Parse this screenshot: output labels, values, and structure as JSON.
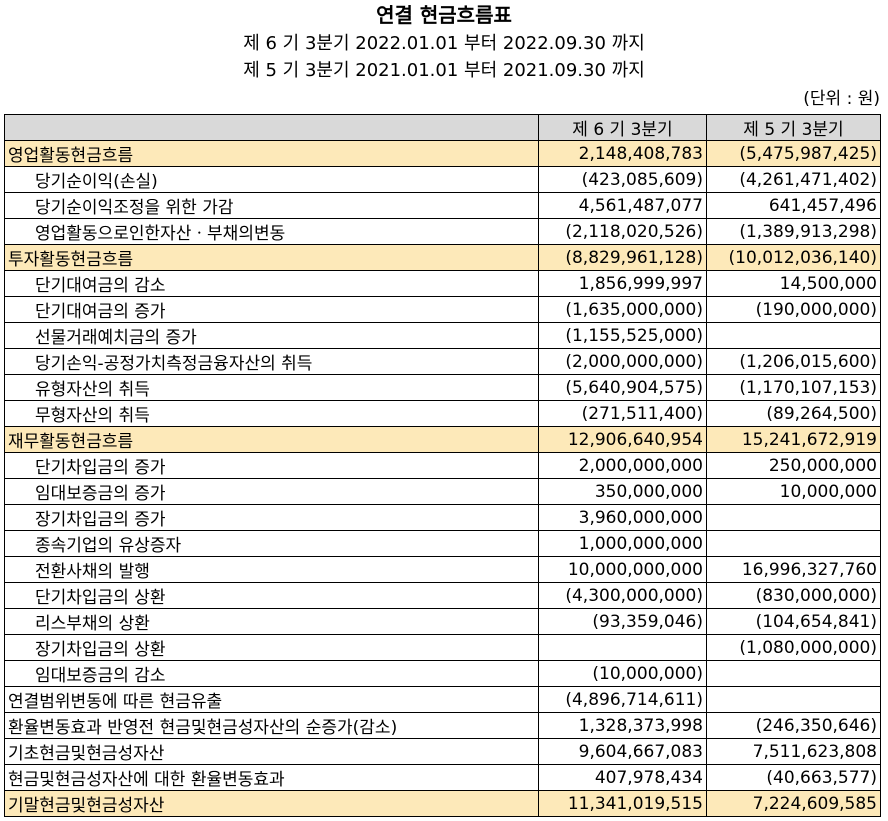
{
  "title": "연결 현금흐름표",
  "period_current": "제 6 기 3분기 2022.01.01 부터 2022.09.30 까지",
  "period_prior": "제 5 기 3분기 2021.01.01 부터 2021.09.30 까지",
  "unit": "(단위 : 원)",
  "colors": {
    "header_bg": "#d9d9d9",
    "section_bg": "#fde9b9"
  },
  "table": {
    "header": [
      "",
      "제 6 기 3분기",
      "제 5 기 3분기"
    ],
    "rows": [
      {
        "label": "영업활동현금흐름",
        "current": "2,148,408,783",
        "prior": "(5,475,987,425)",
        "section": true
      },
      {
        "label": "당기순이익(손실)",
        "current": "(423,085,609)",
        "prior": "(4,261,471,402)",
        "indent": true
      },
      {
        "label": "당기순이익조정을 위한 가감",
        "current": "4,561,487,077",
        "prior": "641,457,496",
        "indent": true
      },
      {
        "label": "영업활동으로인한자산ㆍ부채의변동",
        "current": "(2,118,020,526)",
        "prior": "(1,389,913,298)",
        "indent": true
      },
      {
        "label": "투자활동현금흐름",
        "current": "(8,829,961,128)",
        "prior": "(10,012,036,140)",
        "section": true
      },
      {
        "label": "단기대여금의 감소",
        "current": "1,856,999,997",
        "prior": "14,500,000",
        "indent": true
      },
      {
        "label": "단기대여금의 증가",
        "current": "(1,635,000,000)",
        "prior": "(190,000,000)",
        "indent": true
      },
      {
        "label": "선물거래예치금의 증가",
        "current": "(1,155,525,000)",
        "prior": "",
        "indent": true
      },
      {
        "label": "당기손익-공정가치측정금융자산의 취득",
        "current": "(2,000,000,000)",
        "prior": "(1,206,015,600)",
        "indent": true
      },
      {
        "label": "유형자산의 취득",
        "current": "(5,640,904,575)",
        "prior": "(1,170,107,153)",
        "indent": true
      },
      {
        "label": "무형자산의 취득",
        "current": "(271,511,400)",
        "prior": "(89,264,500)",
        "indent": true
      },
      {
        "label": "재무활동현금흐름",
        "current": "12,906,640,954",
        "prior": "15,241,672,919",
        "section": true
      },
      {
        "label": "단기차입금의 증가",
        "current": "2,000,000,000",
        "prior": "250,000,000",
        "indent": true
      },
      {
        "label": "임대보증금의 증가",
        "current": "350,000,000",
        "prior": "10,000,000",
        "indent": true
      },
      {
        "label": "장기차입금의 증가",
        "current": "3,960,000,000",
        "prior": "",
        "indent": true
      },
      {
        "label": "종속기업의 유상증자",
        "current": "1,000,000,000",
        "prior": "",
        "indent": true
      },
      {
        "label": "전환사채의 발행",
        "current": "10,000,000,000",
        "prior": "16,996,327,760",
        "indent": true
      },
      {
        "label": "단기차입금의 상환",
        "current": "(4,300,000,000)",
        "prior": "(830,000,000)",
        "indent": true
      },
      {
        "label": "리스부채의 상환",
        "current": "(93,359,046)",
        "prior": "(104,654,841)",
        "indent": true
      },
      {
        "label": "장기차입금의 상환",
        "current": "",
        "prior": "(1,080,000,000)",
        "indent": true
      },
      {
        "label": "임대보증금의 감소",
        "current": "(10,000,000)",
        "prior": "",
        "indent": true
      },
      {
        "label": "연결범위변동에 따른 현금유출",
        "current": "(4,896,714,611)",
        "prior": ""
      },
      {
        "label": "환율변동효과 반영전 현금및현금성자산의 순증가(감소)",
        "current": "1,328,373,998",
        "prior": "(246,350,646)"
      },
      {
        "label": "기초현금및현금성자산",
        "current": "9,604,667,083",
        "prior": "7,511,623,808"
      },
      {
        "label": "현금및현금성자산에 대한 환율변동효과",
        "current": "407,978,434",
        "prior": "(40,663,577)"
      },
      {
        "label": "기말현금및현금성자산",
        "current": "11,341,019,515",
        "prior": "7,224,609,585",
        "section": true
      }
    ]
  }
}
